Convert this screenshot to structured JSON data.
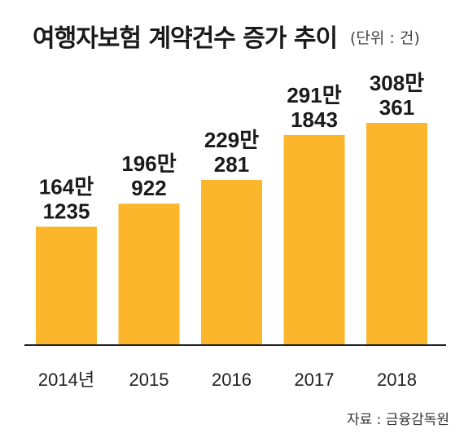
{
  "title": "여행자보험 계약건수 증가 추이",
  "unit": "(단위 : 건)",
  "source": "자료 : 금융감독원",
  "colors": {
    "bar": "#fbb62c",
    "baseline": "#222222"
  },
  "chart_data": {
    "type": "bar",
    "title": "여행자보험 계약건수 증가 추이",
    "categories": [
      "2014년",
      "2015",
      "2016",
      "2017",
      "2018"
    ],
    "values": [
      1641235,
      1960922,
      2290281,
      2911843,
      3080361
    ],
    "value_labels": [
      [
        "164만",
        "1235"
      ],
      [
        "196만",
        "922"
      ],
      [
        "229만",
        "281"
      ],
      [
        "291만",
        "1843"
      ],
      [
        "308만",
        "361"
      ]
    ],
    "unit": "건",
    "grid": false,
    "legend": "none"
  }
}
